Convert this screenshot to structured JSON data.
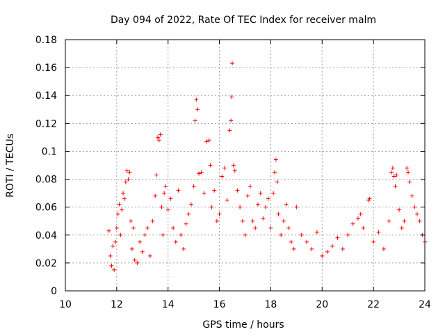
{
  "chart_data": {
    "type": "scatter",
    "title": "Day 094 of 2022, Rate Of TEC Index for receiver malm",
    "xlabel": "GPS time / hours",
    "ylabel": "ROTI / TECUs",
    "xlim": [
      10,
      24
    ],
    "ylim": [
      0,
      0.18
    ],
    "x_ticks": [
      "10",
      "12",
      "14",
      "16",
      "18",
      "20",
      "22",
      "24"
    ],
    "y_ticks": [
      "0",
      "0.02",
      "0.04",
      "0.06",
      "0.08",
      "0.1",
      "0.12",
      "0.14",
      "0.16",
      "0.18"
    ],
    "grid": true,
    "marker": "plus",
    "color": "#ff0000",
    "points": [
      [
        11.7,
        0.043
      ],
      [
        11.75,
        0.025
      ],
      [
        11.8,
        0.018
      ],
      [
        11.85,
        0.032
      ],
      [
        11.9,
        0.015
      ],
      [
        11.95,
        0.035
      ],
      [
        12.0,
        0.045
      ],
      [
        12.05,
        0.055
      ],
      [
        12.1,
        0.062
      ],
      [
        12.15,
        0.04
      ],
      [
        12.2,
        0.058
      ],
      [
        12.25,
        0.07
      ],
      [
        12.3,
        0.066
      ],
      [
        12.35,
        0.078
      ],
      [
        12.4,
        0.086
      ],
      [
        12.45,
        0.08
      ],
      [
        12.5,
        0.085
      ],
      [
        12.55,
        0.05
      ],
      [
        12.6,
        0.03
      ],
      [
        12.65,
        0.045
      ],
      [
        12.7,
        0.022
      ],
      [
        12.8,
        0.02
      ],
      [
        12.9,
        0.035
      ],
      [
        13.0,
        0.028
      ],
      [
        13.1,
        0.04
      ],
      [
        13.2,
        0.045
      ],
      [
        13.3,
        0.025
      ],
      [
        13.4,
        0.05
      ],
      [
        13.5,
        0.068
      ],
      [
        13.55,
        0.083
      ],
      [
        13.6,
        0.11
      ],
      [
        13.65,
        0.108
      ],
      [
        13.7,
        0.112
      ],
      [
        13.75,
        0.06
      ],
      [
        13.8,
        0.04
      ],
      [
        13.85,
        0.07
      ],
      [
        13.9,
        0.075
      ],
      [
        14.0,
        0.058
      ],
      [
        14.1,
        0.066
      ],
      [
        14.2,
        0.045
      ],
      [
        14.3,
        0.035
      ],
      [
        14.4,
        0.072
      ],
      [
        14.5,
        0.04
      ],
      [
        14.6,
        0.03
      ],
      [
        14.7,
        0.048
      ],
      [
        14.8,
        0.055
      ],
      [
        14.9,
        0.062
      ],
      [
        15.0,
        0.075
      ],
      [
        15.05,
        0.122
      ],
      [
        15.1,
        0.137
      ],
      [
        15.15,
        0.13
      ],
      [
        15.2,
        0.084
      ],
      [
        15.3,
        0.085
      ],
      [
        15.4,
        0.07
      ],
      [
        15.5,
        0.107
      ],
      [
        15.6,
        0.108
      ],
      [
        15.65,
        0.09
      ],
      [
        15.7,
        0.06
      ],
      [
        15.8,
        0.072
      ],
      [
        15.9,
        0.05
      ],
      [
        16.0,
        0.055
      ],
      [
        16.1,
        0.082
      ],
      [
        16.2,
        0.088
      ],
      [
        16.3,
        0.065
      ],
      [
        16.4,
        0.115
      ],
      [
        16.45,
        0.122
      ],
      [
        16.48,
        0.139
      ],
      [
        16.5,
        0.163
      ],
      [
        16.55,
        0.09
      ],
      [
        16.6,
        0.086
      ],
      [
        16.7,
        0.072
      ],
      [
        16.8,
        0.06
      ],
      [
        16.9,
        0.05
      ],
      [
        17.0,
        0.04
      ],
      [
        17.1,
        0.068
      ],
      [
        17.2,
        0.075
      ],
      [
        17.3,
        0.05
      ],
      [
        17.4,
        0.045
      ],
      [
        17.5,
        0.062
      ],
      [
        17.6,
        0.07
      ],
      [
        17.7,
        0.052
      ],
      [
        17.8,
        0.06
      ],
      [
        17.9,
        0.066
      ],
      [
        18.0,
        0.045
      ],
      [
        18.1,
        0.07
      ],
      [
        18.15,
        0.085
      ],
      [
        18.2,
        0.094
      ],
      [
        18.25,
        0.078
      ],
      [
        18.3,
        0.055
      ],
      [
        18.4,
        0.04
      ],
      [
        18.5,
        0.05
      ],
      [
        18.6,
        0.062
      ],
      [
        18.7,
        0.045
      ],
      [
        18.8,
        0.035
      ],
      [
        18.9,
        0.03
      ],
      [
        19.0,
        0.06
      ],
      [
        19.2,
        0.04
      ],
      [
        19.4,
        0.035
      ],
      [
        19.6,
        0.03
      ],
      [
        19.8,
        0.042
      ],
      [
        20.0,
        0.025
      ],
      [
        20.2,
        0.028
      ],
      [
        20.4,
        0.032
      ],
      [
        20.6,
        0.038
      ],
      [
        20.8,
        0.03
      ],
      [
        21.0,
        0.04
      ],
      [
        21.2,
        0.048
      ],
      [
        21.4,
        0.052
      ],
      [
        21.5,
        0.055
      ],
      [
        21.6,
        0.045
      ],
      [
        21.8,
        0.065
      ],
      [
        21.85,
        0.066
      ],
      [
        22.0,
        0.035
      ],
      [
        22.2,
        0.042
      ],
      [
        22.4,
        0.03
      ],
      [
        22.6,
        0.05
      ],
      [
        22.7,
        0.085
      ],
      [
        22.75,
        0.088
      ],
      [
        22.8,
        0.082
      ],
      [
        22.85,
        0.075
      ],
      [
        22.9,
        0.083
      ],
      [
        23.0,
        0.058
      ],
      [
        23.1,
        0.045
      ],
      [
        23.2,
        0.05
      ],
      [
        23.3,
        0.088
      ],
      [
        23.35,
        0.085
      ],
      [
        23.4,
        0.078
      ],
      [
        23.5,
        0.068
      ],
      [
        23.6,
        0.06
      ],
      [
        23.7,
        0.055
      ],
      [
        23.8,
        0.05
      ],
      [
        23.9,
        0.04
      ],
      [
        24.0,
        0.035
      ]
    ]
  }
}
